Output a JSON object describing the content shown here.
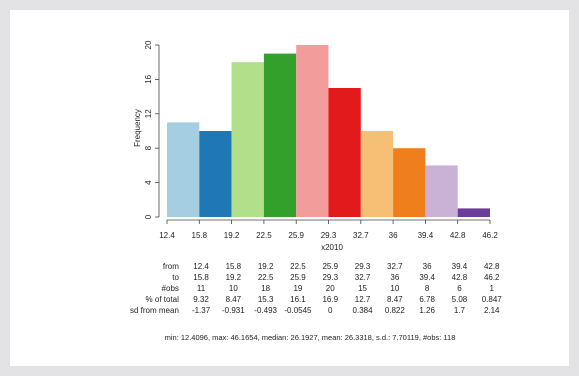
{
  "chart_data": {
    "type": "bar",
    "subtype": "histogram",
    "xlabel": "x2010",
    "ylabel": "Frequency",
    "ylim": [
      0,
      20
    ],
    "yticks": [
      0,
      4,
      8,
      12,
      16,
      20
    ],
    "bin_edges": [
      "12.4",
      "15.8",
      "19.2",
      "22.5",
      "25.9",
      "29.3",
      "32.7",
      "36",
      "39.4",
      "42.8",
      "46.2"
    ],
    "values": [
      11,
      10,
      18,
      19,
      20,
      15,
      10,
      8,
      6,
      1
    ],
    "colors": [
      "#a6cee3",
      "#1f78b4",
      "#b2df8a",
      "#33a02c",
      "#f29c9b",
      "#e31a1c",
      "#f7bf75",
      "#ef7e1d",
      "#cab2d6",
      "#6a3d9a"
    ],
    "grid": false
  },
  "table": {
    "rows": [
      {
        "label": "from",
        "cells": [
          "12.4",
          "15.8",
          "19.2",
          "22.5",
          "25.9",
          "29.3",
          "32.7",
          "36",
          "39.4",
          "42.8"
        ]
      },
      {
        "label": "to",
        "cells": [
          "15.8",
          "19.2",
          "22.5",
          "25.9",
          "29.3",
          "32.7",
          "36",
          "39.4",
          "42.8",
          "46.2"
        ]
      },
      {
        "label": "#obs",
        "cells": [
          "11",
          "10",
          "18",
          "19",
          "20",
          "15",
          "10",
          "8",
          "6",
          "1"
        ]
      },
      {
        "label": "% of total",
        "cells": [
          "9.32",
          "8.47",
          "15.3",
          "16.1",
          "16.9",
          "12.7",
          "8.47",
          "6.78",
          "5.08",
          "0.847"
        ]
      },
      {
        "label": "sd from mean",
        "cells": [
          "-1.37",
          "-0.931",
          "-0.493",
          "-0.0545",
          "0",
          "0.384",
          "0.822",
          "1.26",
          "1.7",
          "2.14"
        ]
      }
    ]
  },
  "summary": "min: 12.4096, max: 46.1654, median: 26.1927, mean: 26.3318, s.d.: 7.70119, #obs: 118"
}
